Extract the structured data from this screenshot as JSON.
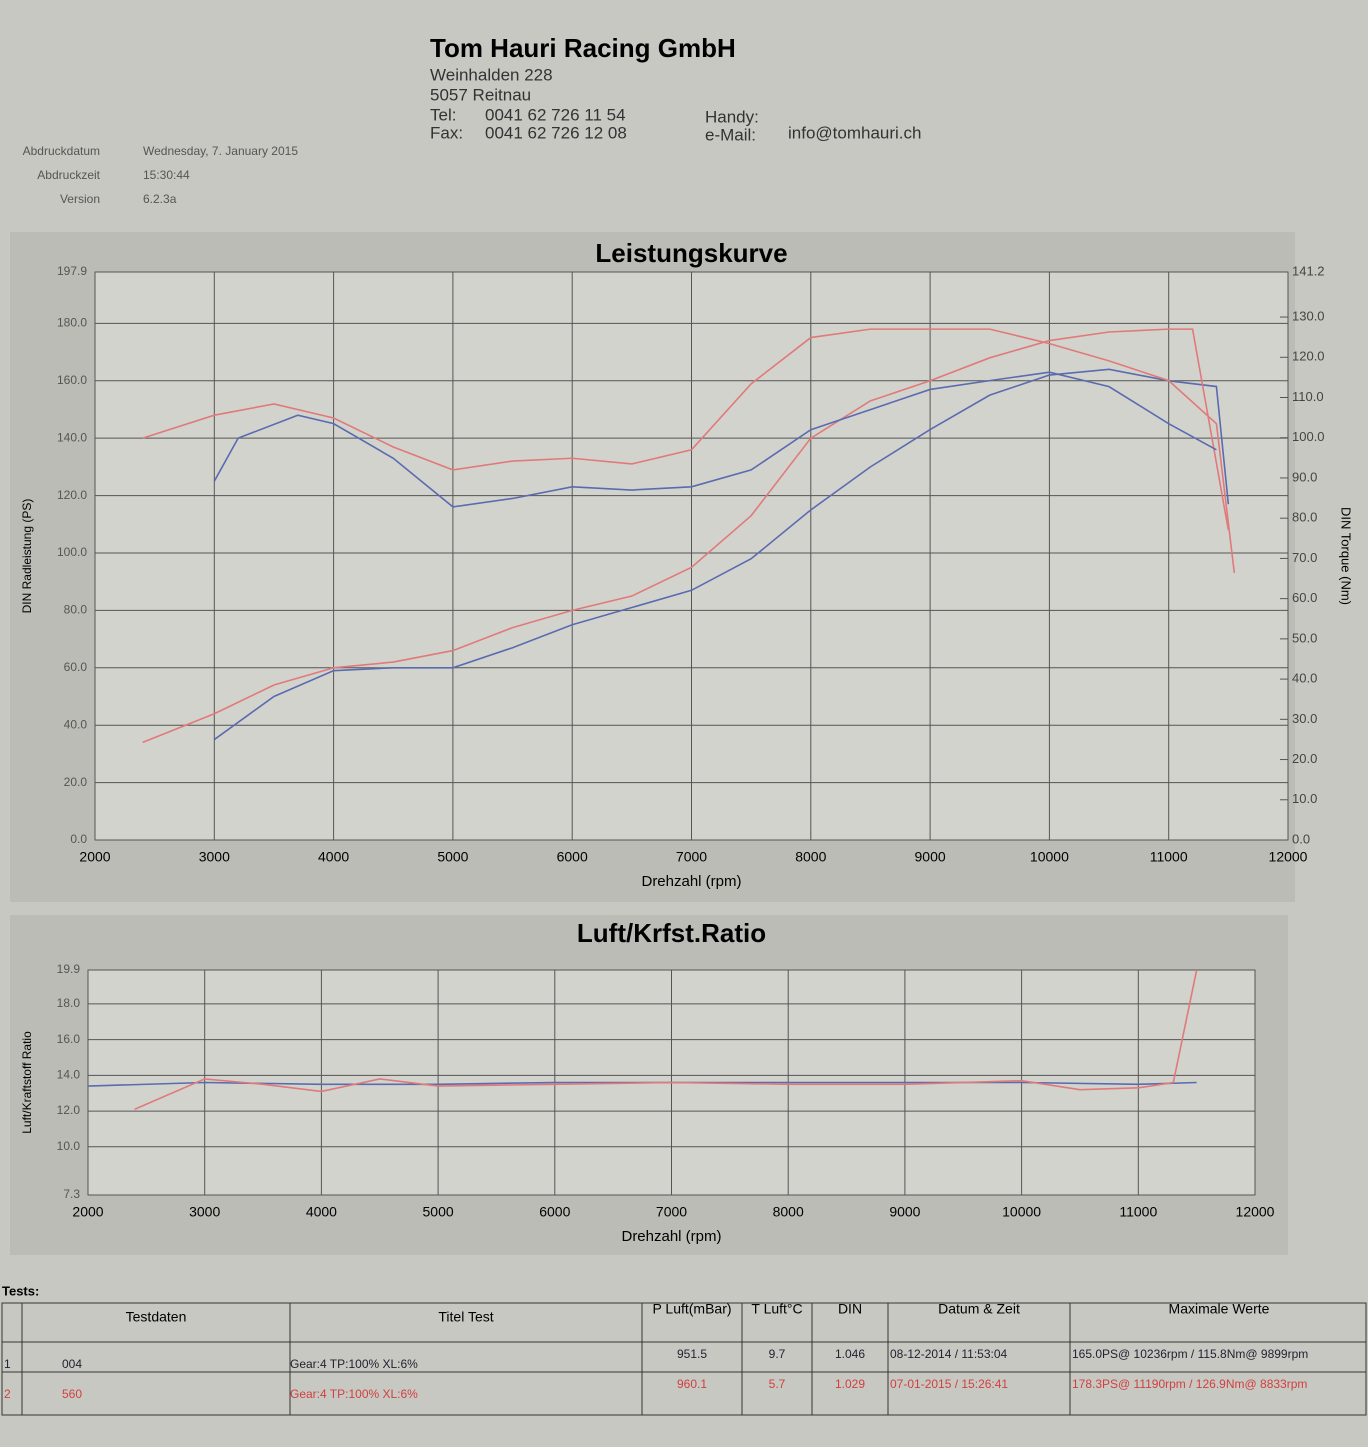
{
  "header": {
    "company": "Tom Hauri Racing GmbH",
    "street": "Weinhalden 228",
    "city": "5057 Reitnau",
    "tel_label": "Tel:",
    "tel": "0041 62 726 11 54",
    "fax_label": "Fax:",
    "fax": "0041 62 726 12 08",
    "handy_label": "Handy:",
    "email_label": "e-Mail:",
    "email": "info@tomhauri.ch",
    "print_date_label": "Abdruckdatum",
    "print_date": "Wednesday, 7. January 2015",
    "print_time_label": "Abdruckzeit",
    "print_time": "15:30:44",
    "version_label": "Version",
    "version": "6.2.3a"
  },
  "chart_data": [
    {
      "type": "line",
      "title": "Leistungskurve",
      "x_label": "Drehzahl (rpm)",
      "y_label": "DIN Radleistung (PS)",
      "y2_label": "DIN Torque (Nm)",
      "xlim": [
        2000,
        12000
      ],
      "xticks": [
        2000,
        3000,
        4000,
        5000,
        6000,
        7000,
        8000,
        9000,
        10000,
        11000,
        12000
      ],
      "ylim": [
        0,
        197.9
      ],
      "yticks": [
        {
          "value": 0,
          "label": "0.0"
        },
        {
          "value": 20,
          "label": "20.0"
        },
        {
          "value": 40,
          "label": "40.0"
        },
        {
          "value": 60,
          "label": "60.0"
        },
        {
          "value": 80,
          "label": "80.0"
        },
        {
          "value": 100,
          "label": "100.0"
        },
        {
          "value": 120,
          "label": "120.0"
        },
        {
          "value": 140,
          "label": "140.0"
        },
        {
          "value": 160,
          "label": "160.0"
        },
        {
          "value": 180,
          "label": "180.0"
        },
        197.9
      ],
      "y2lim": [
        0,
        141.2
      ],
      "y2ticks": [
        {
          "value": 0,
          "label": "0.0"
        },
        {
          "value": 10,
          "label": "10.0"
        },
        {
          "value": 20,
          "label": "20.0"
        },
        {
          "value": 30,
          "label": "30.0"
        },
        {
          "value": 40,
          "label": "40.0"
        },
        {
          "value": 50,
          "label": "50.0"
        },
        {
          "value": 60,
          "label": "60.0"
        },
        {
          "value": 70,
          "label": "70.0"
        },
        {
          "value": 80,
          "label": "80.0"
        },
        {
          "value": 90,
          "label": "90.0"
        },
        {
          "value": 100,
          "label": "100.0"
        },
        {
          "value": 110,
          "label": "110.0"
        },
        {
          "value": 120,
          "label": "120.0"
        },
        {
          "value": 130,
          "label": "130.0"
        },
        141.2
      ],
      "grid": true,
      "series": [
        {
          "color": "#5a6bb0",
          "x": [
            3000,
            3500,
            4000,
            4500,
            5000,
            5500,
            6000,
            6500,
            7000,
            7500,
            8000,
            8500,
            9000,
            9500,
            10000,
            10500,
            11000,
            11400,
            11500
          ],
          "values": [
            35,
            50,
            59,
            60,
            60,
            67,
            75,
            81,
            87,
            98,
            115,
            130,
            143,
            155,
            162,
            164,
            160,
            158,
            117
          ]
        },
        {
          "color": "#e07a7a",
          "x": [
            2400,
            3000,
            3500,
            4000,
            4500,
            5000,
            5500,
            6000,
            6500,
            7000,
            7500,
            8000,
            8500,
            9000,
            9500,
            10000,
            10500,
            11000,
            11200,
            11500
          ],
          "values": [
            34,
            44,
            54,
            60,
            62,
            66,
            74,
            80,
            85,
            95,
            113,
            140,
            153,
            160,
            168,
            174,
            177,
            178,
            178,
            108
          ]
        },
        {
          "color": "#5a6bb0",
          "axis": "y2",
          "x": [
            3000,
            3200,
            3700,
            4000,
            4500,
            5000,
            5500,
            6000,
            6500,
            7000,
            7500,
            8000,
            8500,
            9000,
            9500,
            10000,
            10500,
            11000,
            11400
          ],
          "values": [
            89.2,
            99.9,
            105.6,
            103.5,
            94.9,
            82.8,
            84.9,
            87.8,
            87.0,
            87.8,
            92.0,
            102.0,
            107.0,
            112.0,
            114.2,
            116.3,
            112.7,
            103.5,
            97.0
          ]
        },
        {
          "color": "#e07a7a",
          "axis": "y2",
          "x": [
            2400,
            3000,
            3500,
            4000,
            4500,
            5000,
            5500,
            6000,
            6500,
            7000,
            7500,
            8000,
            8500,
            9000,
            9500,
            10000,
            10500,
            11000,
            11400,
            11550
          ],
          "values": [
            99.9,
            105.6,
            108.4,
            104.9,
            97.7,
            92.0,
            94.2,
            94.9,
            93.5,
            97.0,
            113.4,
            124.9,
            127.0,
            127.0,
            127.0,
            123.4,
            119.1,
            114.2,
            103.5,
            66.4
          ]
        }
      ]
    },
    {
      "type": "line",
      "title": "Luft/Krfst.Ratio",
      "x_label": "Drehzahl (rpm)",
      "y_label": "Luft/Kraftstoff Ratio",
      "xlim": [
        2000,
        12000
      ],
      "xticks": [
        2000,
        3000,
        4000,
        5000,
        6000,
        7000,
        8000,
        9000,
        10000,
        11000,
        12000
      ],
      "ylim": [
        7.3,
        19.9
      ],
      "yticks": [
        7.3,
        {
          "value": 10,
          "label": "10.0"
        },
        {
          "value": 12,
          "label": "12.0"
        },
        {
          "value": 14,
          "label": "14.0"
        },
        {
          "value": 16,
          "label": "16.0"
        },
        {
          "value": 18,
          "label": "18.0"
        },
        19.9
      ],
      "grid": true,
      "series": [
        {
          "color": "#5a6bb0",
          "x": [
            2000,
            3000,
            4000,
            5000,
            6000,
            7000,
            8000,
            9000,
            10000,
            11000,
            11500
          ],
          "values": [
            13.4,
            13.6,
            13.5,
            13.5,
            13.6,
            13.6,
            13.6,
            13.6,
            13.6,
            13.5,
            13.6
          ]
        },
        {
          "color": "#e07a7a",
          "x": [
            2400,
            3000,
            3500,
            4000,
            4500,
            5000,
            6000,
            7000,
            8000,
            9000,
            10000,
            10500,
            11000,
            11300,
            11500
          ],
          "values": [
            12.1,
            13.8,
            13.5,
            13.1,
            13.8,
            13.4,
            13.5,
            13.6,
            13.5,
            13.5,
            13.7,
            13.2,
            13.3,
            13.6,
            19.9
          ]
        }
      ]
    }
  ],
  "table": {
    "caption": "Tests:",
    "headers": [
      "Testdaten",
      "Titel Test",
      "P Luft(mBar)",
      "T Luft°C",
      "DIN",
      "Datum & Zeit",
      "Maximale Werte"
    ],
    "rows": [
      [
        "1",
        "004",
        "Gear:4 TP:100% XL:6%",
        "951.5",
        "9.7",
        "1.046",
        "08-12-2014 / 11:53:04",
        "165.0PS@ 10236rpm / 115.8Nm@ 9899rpm"
      ],
      [
        "2",
        "560",
        "Gear:4 TP:100% XL:6%",
        "960.1",
        "5.7",
        "1.029",
        "07-01-2015 / 15:26:41",
        "178.3PS@ 11190rpm / 126.9Nm@ 8833rpm"
      ]
    ]
  }
}
